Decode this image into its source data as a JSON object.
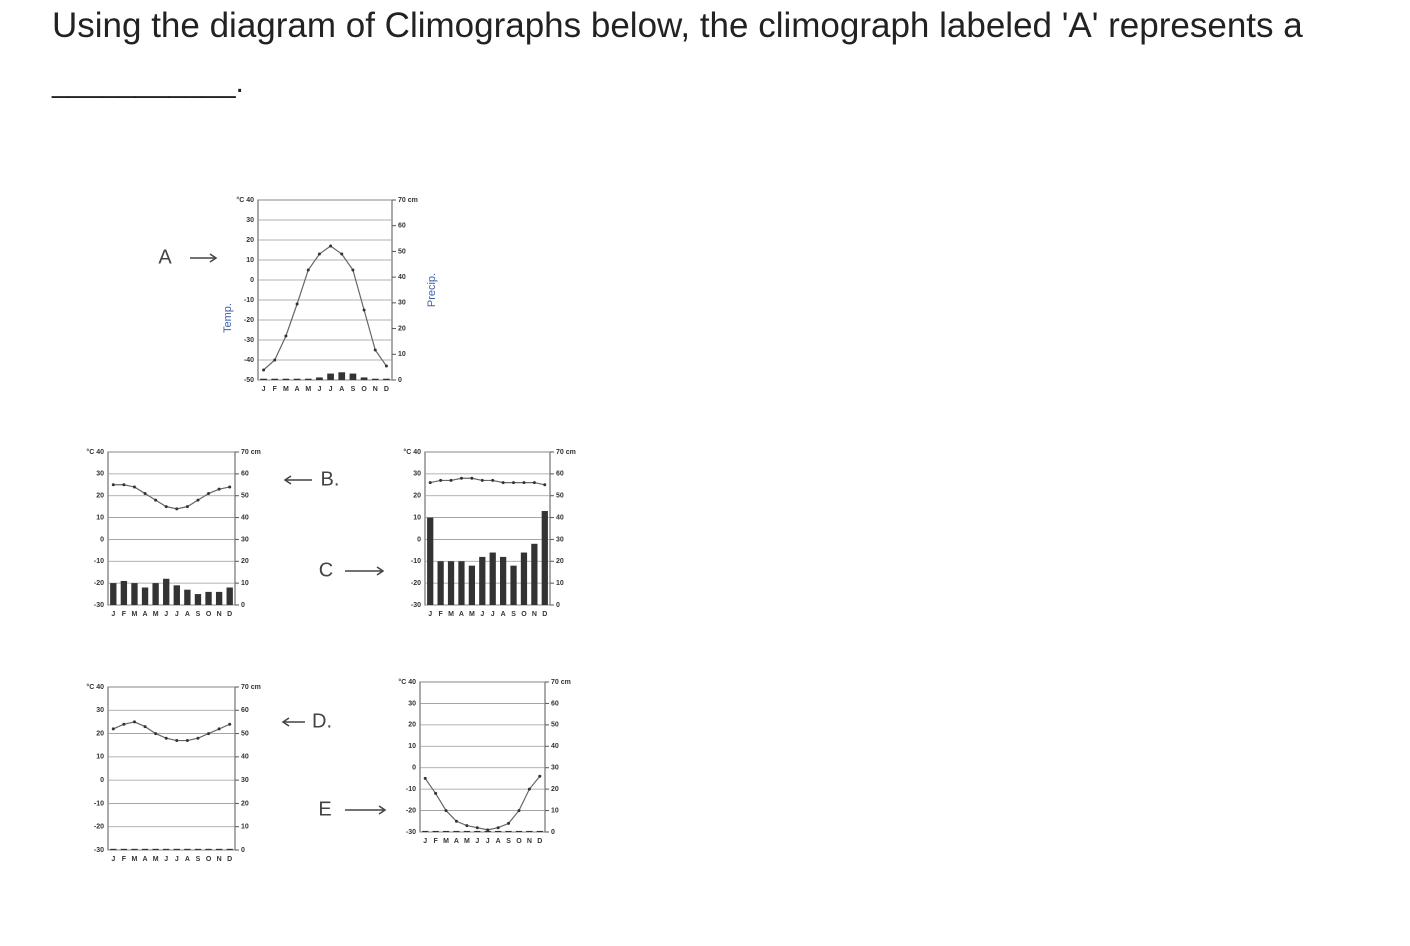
{
  "question": "Using the diagram of Climographs below, the climograph labeled 'A' represents a",
  "blank": "___________.",
  "figure": {
    "months": [
      "J",
      "F",
      "M",
      "A",
      "M",
      "J",
      "J",
      "A",
      "S",
      "O",
      "N",
      "D"
    ],
    "temp_axis_label": "Temp.",
    "precip_axis_label": "Precip.",
    "y2lim": [
      0,
      70
    ],
    "y2ticks": [
      {
        "value": 70,
        "label": "70 cm"
      },
      60,
      50,
      40,
      30,
      20,
      10,
      0
    ],
    "charts": [
      {
        "label": "A",
        "ylim": [
          -50,
          40
        ],
        "yticks": [
          {
            "value": 40,
            "label": "°C 40"
          },
          30,
          20,
          10,
          0,
          -10,
          -20,
          -30,
          -40,
          -50
        ],
        "temperature": [
          -45,
          -40,
          -28,
          -12,
          5,
          13,
          17,
          13,
          5,
          -15,
          -35,
          -43
        ],
        "precipitation": [
          0.5,
          0.5,
          0.5,
          0.5,
          0.5,
          1,
          2.5,
          3,
          2.5,
          1,
          0.5,
          0.5
        ]
      },
      {
        "label": "B.",
        "ylim": [
          -30,
          40
        ],
        "yticks": [
          {
            "value": 40,
            "label": "°C 40"
          },
          30,
          20,
          10,
          0,
          -10,
          -20,
          -30
        ],
        "temperature": [
          25,
          25,
          24,
          21,
          18,
          15,
          14,
          15,
          18,
          21,
          23,
          24
        ],
        "precipitation": [
          10,
          11,
          10,
          8,
          10,
          12,
          9,
          7,
          5,
          6,
          6,
          8
        ]
      },
      {
        "label": "C",
        "ylim": [
          -30,
          40
        ],
        "yticks": [
          {
            "value": 40,
            "label": "°C 40"
          },
          30,
          20,
          10,
          0,
          -10,
          -20,
          -30
        ],
        "temperature": [
          26,
          27,
          27,
          28,
          28,
          27,
          27,
          26,
          26,
          26,
          26,
          25
        ],
        "precipitation": [
          40,
          20,
          20,
          20,
          18,
          22,
          24,
          22,
          18,
          24,
          28,
          43
        ]
      },
      {
        "label": "D.",
        "ylim": [
          -30,
          40
        ],
        "yticks": [
          {
            "value": 40,
            "label": "°C 40"
          },
          30,
          20,
          10,
          0,
          -10,
          -20,
          -30
        ],
        "temperature": [
          22,
          24,
          25,
          23,
          20,
          18,
          17,
          17,
          18,
          20,
          22,
          24
        ],
        "precipitation": [
          0.5,
          0.5,
          0.5,
          0.5,
          0.5,
          0.5,
          0.5,
          0.5,
          0.5,
          0.5,
          0.5,
          0.5
        ]
      },
      {
        "label": "E",
        "ylim": [
          -30,
          40
        ],
        "yticks": [
          {
            "value": 40,
            "label": "°C 40"
          },
          30,
          20,
          10,
          0,
          -10,
          -20,
          -30
        ],
        "temperature": [
          -5,
          -12,
          -20,
          -25,
          -27,
          -28,
          -29,
          -28,
          -26,
          -20,
          -10,
          -4
        ],
        "precipitation": [
          0.5,
          0.5,
          0.5,
          0.5,
          0.5,
          0.5,
          0.5,
          0.5,
          0.5,
          0.5,
          0.5,
          0.5
        ]
      }
    ]
  }
}
